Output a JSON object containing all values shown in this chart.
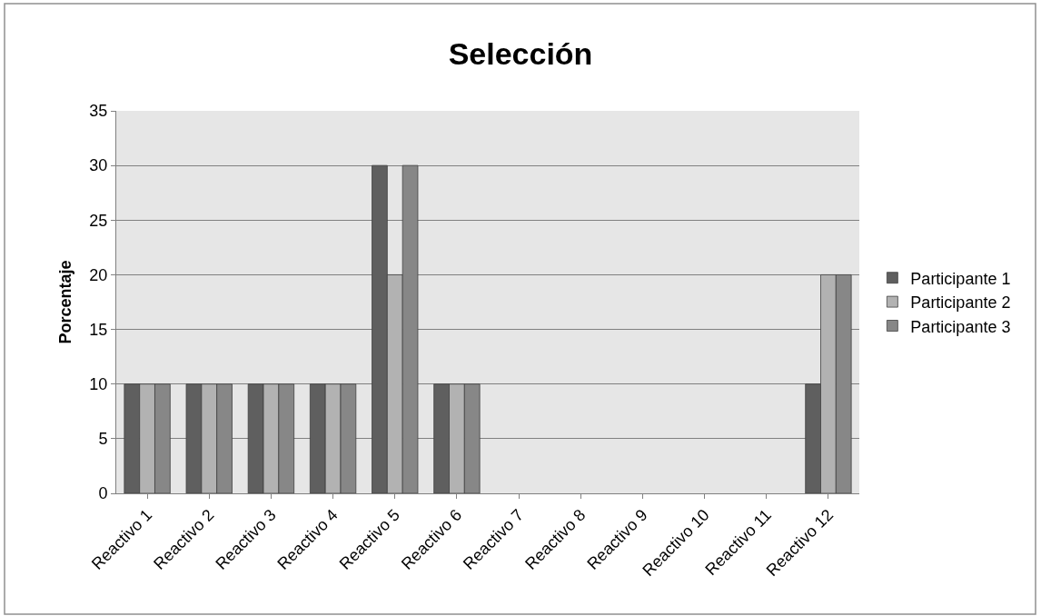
{
  "chart_data": {
    "type": "bar",
    "title": "Selección",
    "ylabel": "Porcentaje",
    "categories": [
      "Reactivo 1",
      "Reactivo 2",
      "Reactivo 3",
      "Reactivo 4",
      "Reactivo 5",
      "Reactivo 6",
      "Reactivo 7",
      "Reactivo 8",
      "Reactivo 9",
      "Reactivo 10",
      "Reactivo 11",
      "Reactivo 12"
    ],
    "series": [
      {
        "name": "Participante 1",
        "color": "#5f5f5f",
        "values": [
          10,
          10,
          10,
          10,
          30,
          10,
          0,
          0,
          0,
          0,
          0,
          10
        ]
      },
      {
        "name": "Participante 2",
        "color": "#b2b2b2",
        "values": [
          10,
          10,
          10,
          10,
          20,
          10,
          0,
          0,
          0,
          0,
          0,
          20
        ]
      },
      {
        "name": "Participante 3",
        "color": "#878787",
        "values": [
          10,
          10,
          10,
          10,
          30,
          10,
          0,
          0,
          0,
          0,
          0,
          20
        ]
      }
    ],
    "ylim": [
      0,
      35
    ],
    "yticks": [
      0,
      5,
      10,
      15,
      20,
      25,
      30,
      35
    ],
    "grid": "y",
    "legend": "right"
  }
}
